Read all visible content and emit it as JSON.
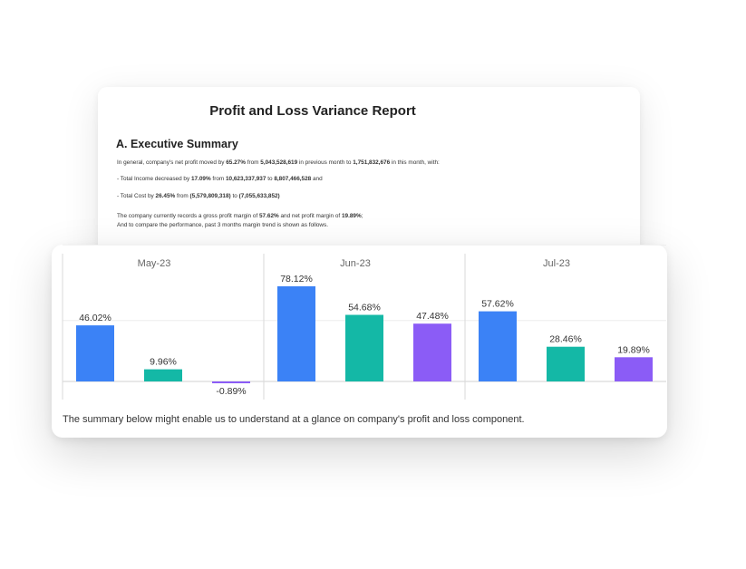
{
  "report": {
    "title": "Profit and Loss Variance Report",
    "section_heading": "A. Executive Summary",
    "summary_line": [
      {
        "t": "In general, company's net profit moved by ",
        "b": false
      },
      {
        "t": "65.27%",
        "b": true
      },
      {
        "t": " from ",
        "b": false
      },
      {
        "t": "5,043,528,619",
        "b": true
      },
      {
        "t": " in previous month to ",
        "b": false
      },
      {
        "t": "1,751,832,676",
        "b": true
      },
      {
        "t": " in this month, with:",
        "b": false
      }
    ],
    "income_line": [
      {
        "t": "- Total Income decreased by ",
        "b": false
      },
      {
        "t": "17.09%",
        "b": true
      },
      {
        "t": " from ",
        "b": false
      },
      {
        "t": "10,623,337,937",
        "b": true
      },
      {
        "t": " to ",
        "b": false
      },
      {
        "t": "8,807,466,528",
        "b": true
      },
      {
        "t": "  and",
        "b": false
      }
    ],
    "cost_line": [
      {
        "t": "- Total Cost  by ",
        "b": false
      },
      {
        "t": "26.45%",
        "b": true
      },
      {
        "t": " from ",
        "b": false
      },
      {
        "t": "(5,579,809,318)",
        "b": true
      },
      {
        "t": " to ",
        "b": false
      },
      {
        "t": "(7,055,633,852)",
        "b": true
      }
    ],
    "margin_line": [
      {
        "t": "The company currently records a gross profit margin of ",
        "b": false
      },
      {
        "t": "57.62%",
        "b": true
      },
      {
        "t": " and net profit margin of ",
        "b": false
      },
      {
        "t": "19.89%",
        "b": true
      },
      {
        "t": ";",
        "b": false
      }
    ],
    "compare_line": "And to compare the performance, past 3 months margin trend is shown as follows."
  },
  "caption": "The summary below might enable us to understand at a glance on company's profit and loss component.",
  "chart_data": {
    "type": "bar",
    "categories": [
      "May-23",
      "Jun-23",
      "Jul-23"
    ],
    "series": [
      {
        "color": "#3b82f6",
        "values": [
          46.02,
          78.12,
          57.62
        ]
      },
      {
        "color": "#14b8a6",
        "values": [
          9.96,
          54.68,
          28.46
        ]
      },
      {
        "color": "#8b5cf6",
        "values": [
          -0.89,
          47.48,
          19.89
        ]
      }
    ],
    "value_suffix": "%",
    "ylim": [
      -3,
      80
    ],
    "grid": true
  }
}
